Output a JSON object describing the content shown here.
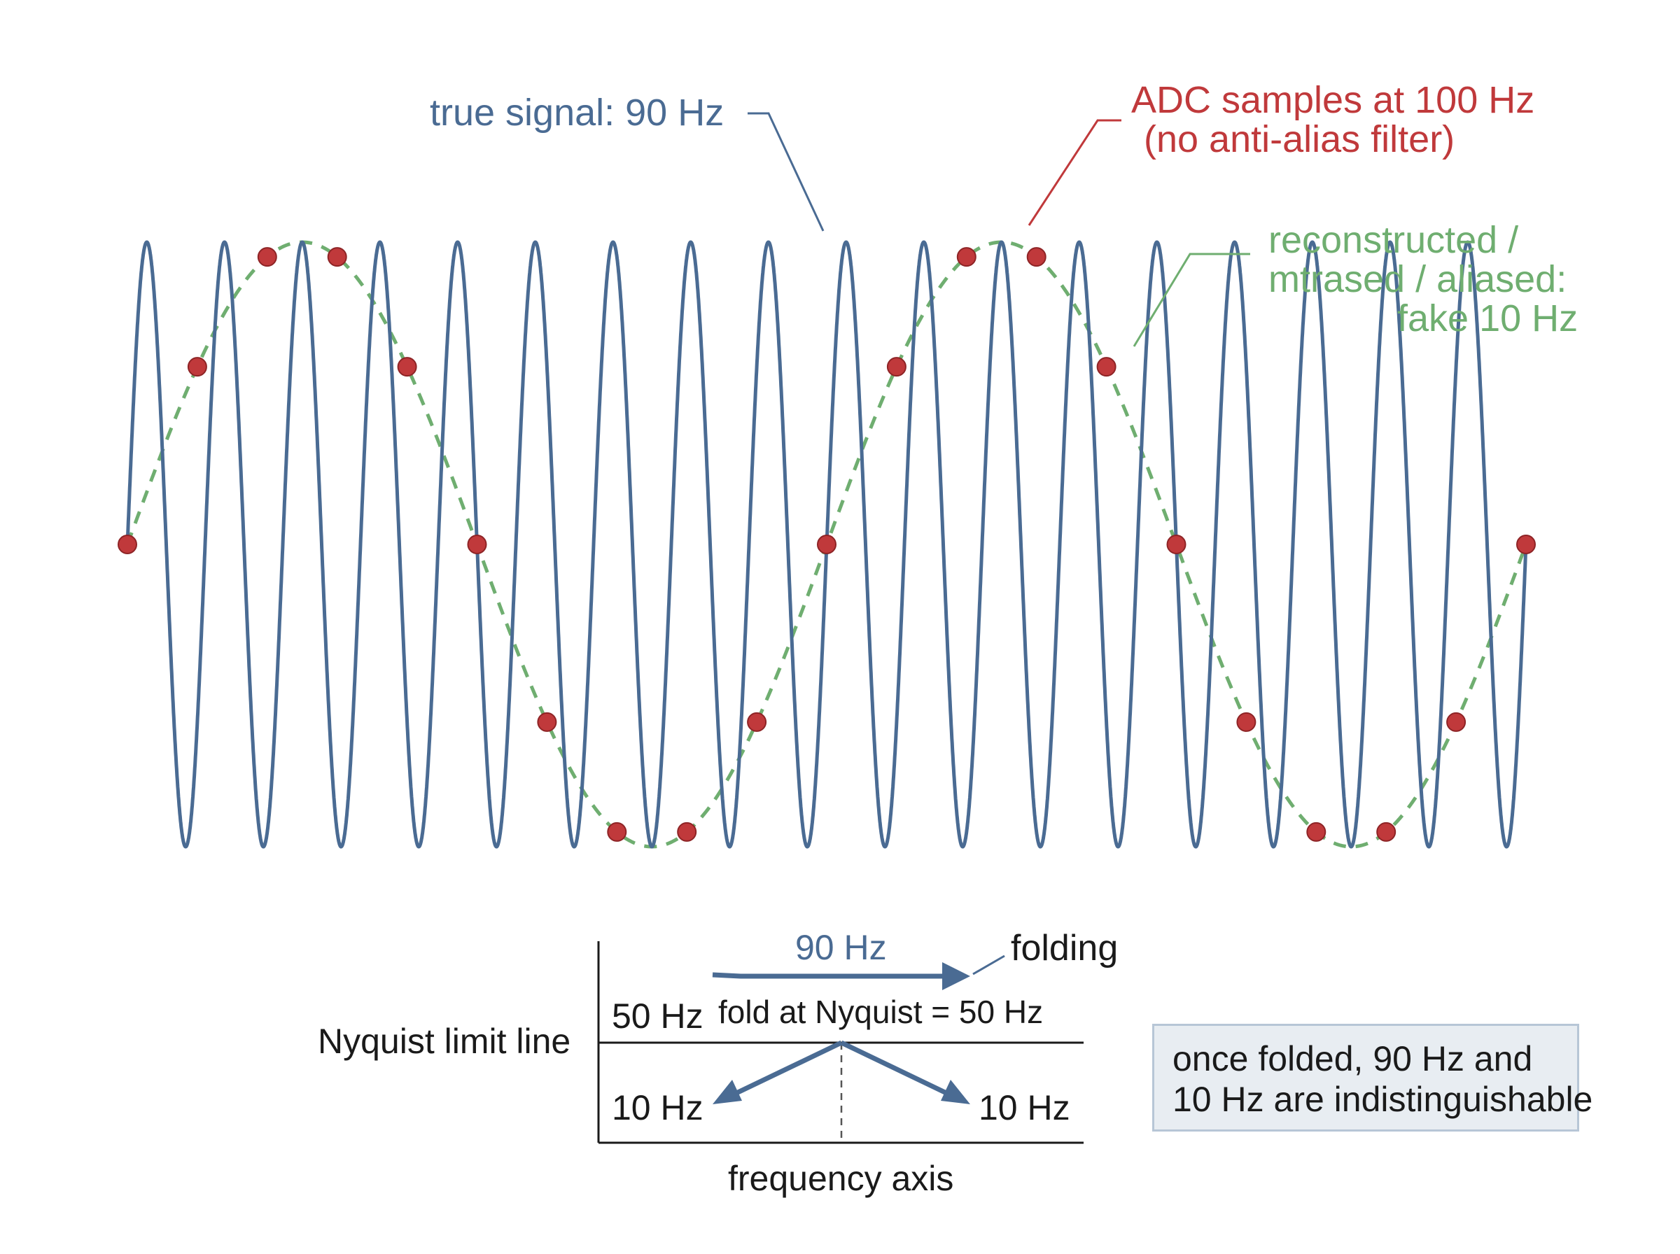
{
  "labels": {
    "true_signal": "true signal: 90 Hz",
    "adc_line1": "ADC samples at 100 Hz",
    "adc_line2": "(no anti-alias filter)",
    "recon_line1": "reconstructed /",
    "recon_line2": "mtrased / aliased:",
    "recon_line3": "fake 10 Hz"
  },
  "fold_diagram": {
    "top_freq": "90 Hz",
    "folding": "folding",
    "nyquist_freq": "50 Hz",
    "fold_caption": "fold at Nyquist = 50 Hz",
    "nyquist_line": "Nyquist limit line",
    "left_result": "10 Hz",
    "right_result": "10 Hz",
    "axis_label": "frequency axis"
  },
  "note": {
    "line1": "once folded, 90 Hz and",
    "line2": "10 Hz are indistinguishable"
  },
  "signal": {
    "true_freq_hz": 90,
    "sample_rate_hz": 100,
    "alias_freq_hz": 10,
    "sample_count": 21
  },
  "colors": {
    "true_signal": "#4a6b93",
    "samples": "#c0393b",
    "alias": "#6fae70",
    "text": "#1a1a1a"
  }
}
